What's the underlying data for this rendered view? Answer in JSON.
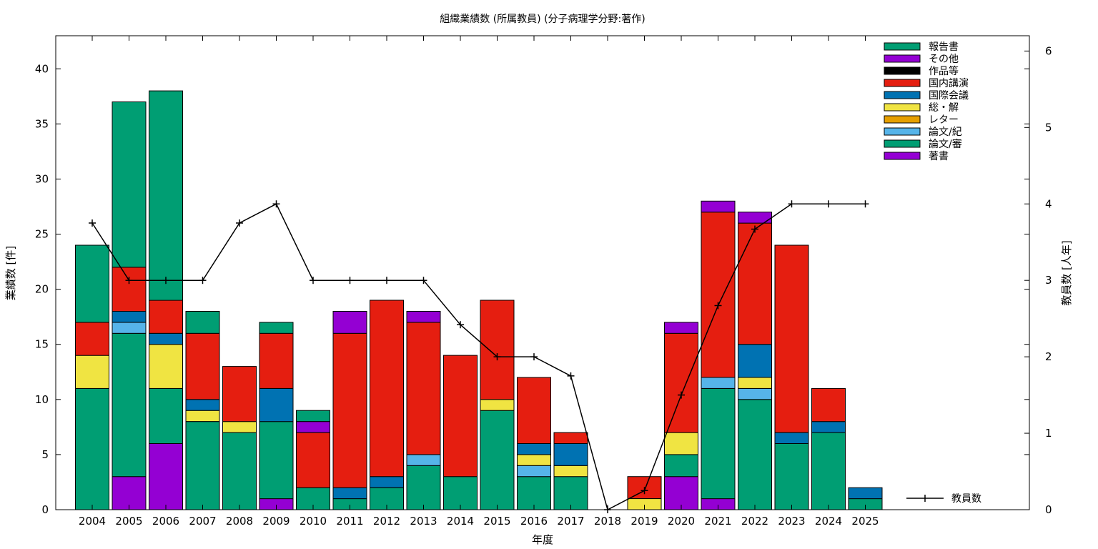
{
  "chart_data": {
    "type": "bar",
    "stacked": true,
    "title": "組織業績数 (所属教員) (分子病理学分野:著作)",
    "xlabel": "年度",
    "ylabel": "業績数 [件]",
    "y2label": "教員数 [人年]",
    "ylim": [
      0,
      43
    ],
    "y2lim": [
      0,
      6.2
    ],
    "yticks": [
      "0",
      "5",
      "10",
      "15",
      "20",
      "25",
      "30",
      "35",
      "40"
    ],
    "y2ticks": [
      "0",
      "1",
      "2",
      "3",
      "4",
      "5",
      "6"
    ],
    "grid": false,
    "legend_position": "top-right",
    "categories": [
      "2004",
      "2005",
      "2006",
      "2007",
      "2008",
      "2009",
      "2010",
      "2011",
      "2012",
      "2013",
      "2014",
      "2015",
      "2016",
      "2017",
      "2018",
      "2019",
      "2020",
      "2021",
      "2022",
      "2023",
      "2024",
      "2025"
    ],
    "series": [
      {
        "name": "著書",
        "color": "#9400d3",
        "values": [
          0,
          3,
          6,
          0,
          0,
          1,
          0,
          0,
          0,
          0,
          0,
          0,
          0,
          0,
          0,
          0,
          3,
          1,
          0,
          0,
          0,
          0
        ]
      },
      {
        "name": "論文/審",
        "color": "#009e73",
        "values": [
          11,
          13,
          5,
          8,
          7,
          7,
          2,
          1,
          2,
          4,
          3,
          9,
          3,
          3,
          0,
          0,
          2,
          10,
          10,
          6,
          7,
          1
        ]
      },
      {
        "name": "論文/紀",
        "color": "#56b4e9",
        "values": [
          0,
          1,
          0,
          0,
          0,
          0,
          0,
          0,
          0,
          1,
          0,
          0,
          1,
          0,
          0,
          0,
          0,
          1,
          1,
          0,
          0,
          0
        ]
      },
      {
        "name": "レター",
        "color": "#e69f00",
        "values": [
          0,
          0,
          0,
          0,
          0,
          0,
          0,
          0,
          0,
          0,
          0,
          0,
          0,
          0,
          0,
          0,
          0,
          0,
          0,
          0,
          0,
          0
        ]
      },
      {
        "name": "総・解",
        "color": "#f0e442",
        "values": [
          3,
          0,
          4,
          1,
          1,
          0,
          0,
          0,
          0,
          0,
          0,
          1,
          1,
          1,
          0,
          1,
          2,
          0,
          1,
          0,
          0,
          0
        ]
      },
      {
        "name": "国際会議",
        "color": "#0072b2",
        "values": [
          0,
          1,
          1,
          1,
          0,
          3,
          0,
          1,
          1,
          0,
          0,
          0,
          1,
          2,
          0,
          0,
          0,
          0,
          3,
          1,
          1,
          1
        ]
      },
      {
        "name": "国内講演",
        "color": "#e51e10",
        "values": [
          3,
          4,
          3,
          6,
          5,
          5,
          5,
          14,
          16,
          12,
          11,
          9,
          6,
          1,
          0,
          2,
          9,
          15,
          11,
          17,
          3,
          0
        ]
      },
      {
        "name": "作品等",
        "color": "#000000",
        "values": [
          0,
          0,
          0,
          0,
          0,
          0,
          0,
          0,
          0,
          0,
          0,
          0,
          0,
          0,
          0,
          0,
          0,
          0,
          0,
          0,
          0,
          0
        ]
      },
      {
        "name": "その他",
        "color": "#9400d3",
        "values": [
          0,
          0,
          0,
          0,
          0,
          0,
          1,
          2,
          0,
          1,
          0,
          0,
          0,
          0,
          0,
          0,
          1,
          1,
          1,
          0,
          0,
          0
        ]
      },
      {
        "name": "報告書",
        "color": "#009e73",
        "values": [
          7,
          15,
          19,
          2,
          0,
          1,
          1,
          0,
          0,
          0,
          0,
          0,
          0,
          0,
          0,
          0,
          0,
          0,
          0,
          0,
          0,
          0
        ]
      }
    ],
    "line": {
      "name": "教員数",
      "axis": "y2",
      "color": "#000000",
      "values": [
        3.75,
        3,
        3,
        3,
        3.75,
        4,
        3,
        3,
        3,
        3,
        2.42,
        2,
        2,
        1.75,
        0,
        0.25,
        1.5,
        2.67,
        3.67,
        4,
        4,
        4
      ]
    }
  }
}
